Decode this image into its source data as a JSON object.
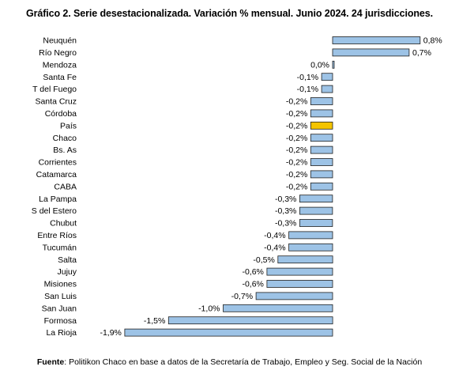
{
  "chart_data": {
    "type": "bar",
    "orientation": "horizontal",
    "title": "Gráfico 2. Serie desestacionalizada. Variación % mensual. Junio 2024. 24 jurisdicciones.",
    "categories": [
      "Neuquén",
      "Río Negro",
      "Mendoza",
      "Santa Fe",
      "T del Fuego",
      "Santa Cruz",
      "Córdoba",
      "País",
      "Chaco",
      "Bs. As",
      "Corrientes",
      "Catamarca",
      "CABA",
      "La Pampa",
      "S del Estero",
      "Chubut",
      "Entre Ríos",
      "Tucumán",
      "Salta",
      "Jujuy",
      "Misiones",
      "San Luis",
      "San Juan",
      "Formosa",
      "La Rioja"
    ],
    "values": [
      0.8,
      0.7,
      0.0,
      -0.1,
      -0.1,
      -0.2,
      -0.2,
      -0.2,
      -0.2,
      -0.2,
      -0.2,
      -0.2,
      -0.2,
      -0.3,
      -0.3,
      -0.3,
      -0.4,
      -0.4,
      -0.5,
      -0.6,
      -0.6,
      -0.7,
      -1.0,
      -1.5,
      -1.9
    ],
    "value_labels": [
      "0,8%",
      "0,7%",
      "0,0%",
      "-0,1%",
      "-0,1%",
      "-0,2%",
      "-0,2%",
      "-0,2%",
      "-0,2%",
      "-0,2%",
      "-0,2%",
      "-0,2%",
      "-0,2%",
      "-0,3%",
      "-0,3%",
      "-0,3%",
      "-0,4%",
      "-0,4%",
      "-0,5%",
      "-0,6%",
      "-0,6%",
      "-0,7%",
      "-1,0%",
      "-1,5%",
      "-1,9%"
    ],
    "highlight_category": "País",
    "xlim": [
      -1.9,
      0.8
    ],
    "grid": false,
    "colors": {
      "bar_fill": "#9dc3e6",
      "bar_stroke": "#1f1f1f",
      "highlight_fill": "#f4c400"
    }
  },
  "source": {
    "label": "Fuente",
    "text": ": Politikon Chaco en base a datos de la Secretaría de Trabajo, Empleo y Seg. Social de la Nación"
  }
}
